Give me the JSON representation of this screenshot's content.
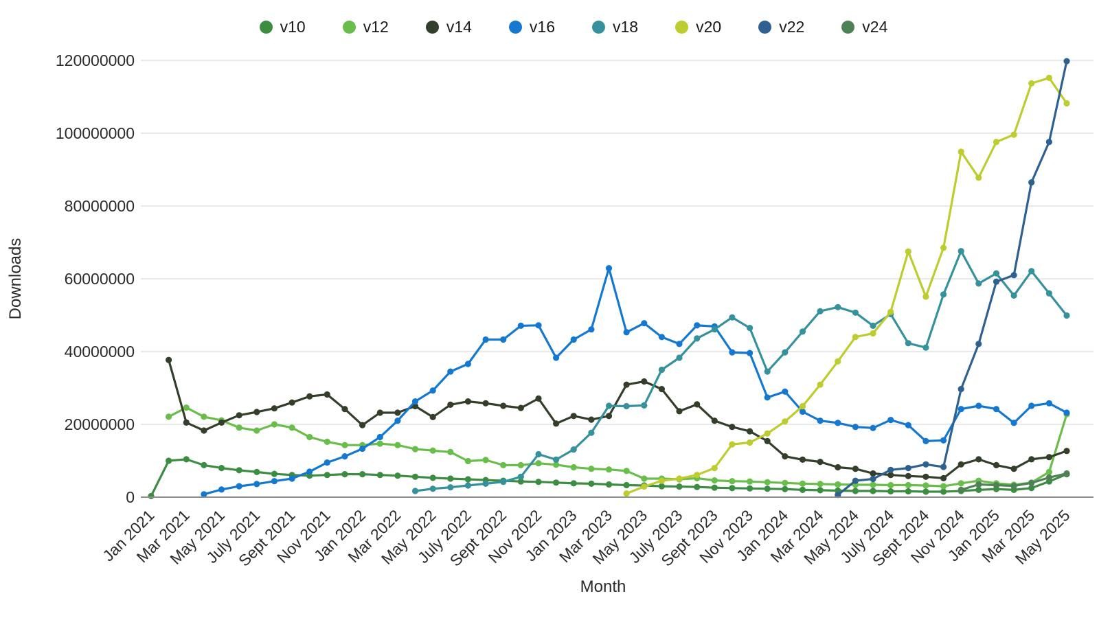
{
  "chart_data": {
    "type": "line",
    "title": "",
    "xlabel": "Month",
    "ylabel": "Downloads",
    "grid": true,
    "legend_position": "top",
    "x_tick_step": 2,
    "x_tick_rotation": -45,
    "ylim": [
      0,
      120000000
    ],
    "y_ticks": [
      0,
      20000000,
      40000000,
      60000000,
      80000000,
      100000000,
      120000000
    ],
    "axis_color": "#8d8d8d",
    "gridline_color": "#e2e2e2",
    "x": [
      "Jan 2021",
      "Feb 2021",
      "Mar 2021",
      "Apr 2021",
      "May 2021",
      "June 2021",
      "July 2021",
      "Aug 2021",
      "Sept 2021",
      "Oct 2021",
      "Nov 2021",
      "Dec 2021",
      "Jan 2022",
      "Feb 2022",
      "Mar 2022",
      "Apr 2022",
      "May 2022",
      "June 2022",
      "July 2022",
      "Aug 2022",
      "Sept 2022",
      "Oct 2022",
      "Nov 2022",
      "Dec 2022",
      "Jan 2023",
      "Feb 2023",
      "Mar 2023",
      "Apr 2023",
      "May 2023",
      "June 2023",
      "July 2023",
      "Aug 2023",
      "Sept 2023",
      "Oct 2023",
      "Nov 2023",
      "Dec 2023",
      "Jan 2024",
      "Feb 2024",
      "Mar 2024",
      "Apr 2024",
      "May 2024",
      "June 2024",
      "July 2024",
      "Aug 2024",
      "Sept 2024",
      "Oct 2024",
      "Nov 2024",
      "Dec 2024",
      "Jan 2025",
      "Feb 2025",
      "Mar 2025",
      "Apr 2025",
      "May 2025"
    ],
    "series": [
      {
        "name": "v10",
        "color": "#3c8c42",
        "values": [
          300000,
          10000000,
          10400000,
          8800000,
          8000000,
          7400000,
          6900000,
          6400000,
          6100000,
          5900000,
          6100000,
          6300000,
          6300000,
          6100000,
          5900000,
          5600000,
          5300000,
          5100000,
          4900000,
          4700000,
          4500000,
          4300000,
          4200000,
          4000000,
          3800000,
          3700000,
          3500000,
          3300000,
          3200000,
          3000000,
          2900000,
          2800000,
          2600000,
          2500000,
          2400000,
          2300000,
          2200000,
          2000000,
          1900000,
          1800000,
          1700000,
          1700000,
          1600000,
          1600000,
          1500000,
          1500000,
          1700000,
          2000000,
          2200000,
          2000000,
          2500000,
          4300000,
          6300000
        ]
      },
      {
        "name": "v12",
        "color": "#69bd4a",
        "values": [
          null,
          22100000,
          24600000,
          22100000,
          21100000,
          19100000,
          18300000,
          20000000,
          19100000,
          16500000,
          15200000,
          14300000,
          14300000,
          14700000,
          14300000,
          13200000,
          12800000,
          12400000,
          9900000,
          10200000,
          8800000,
          8800000,
          9300000,
          8900000,
          8200000,
          7800000,
          7600000,
          7200000,
          5100000,
          5100000,
          4900000,
          5200000,
          4600000,
          4400000,
          4300000,
          4100000,
          3900000,
          3700000,
          3600000,
          3500000,
          3400000,
          3400000,
          3300000,
          3300000,
          3200000,
          3000000,
          3800000,
          4500000,
          3800000,
          3400000,
          4000000,
          6900000,
          22800000
        ]
      },
      {
        "name": "v14",
        "color": "#333f2b",
        "values": [
          null,
          37700000,
          20500000,
          18300000,
          20500000,
          22500000,
          23400000,
          24400000,
          26000000,
          27700000,
          28200000,
          24200000,
          19800000,
          23200000,
          23200000,
          25000000,
          22000000,
          25400000,
          26300000,
          25800000,
          25100000,
          24500000,
          27100000,
          20200000,
          22300000,
          21300000,
          22300000,
          30900000,
          31800000,
          29700000,
          23600000,
          25500000,
          21000000,
          19300000,
          18100000,
          15400000,
          11200000,
          10300000,
          9700000,
          8200000,
          7800000,
          6500000,
          6100000,
          5800000,
          5600000,
          5200000,
          9000000,
          10400000,
          8800000,
          7800000,
          10400000,
          11000000,
          12700000
        ]
      },
      {
        "name": "v16",
        "color": "#1478d0",
        "values": [
          null,
          null,
          null,
          800000,
          2100000,
          3000000,
          3600000,
          4400000,
          5100000,
          7000000,
          9500000,
          11200000,
          13300000,
          16500000,
          21000000,
          26300000,
          29300000,
          34500000,
          36600000,
          43300000,
          43300000,
          47100000,
          47200000,
          38300000,
          43300000,
          46100000,
          62900000,
          45300000,
          47800000,
          44000000,
          42100000,
          47200000,
          46900000,
          39800000,
          39600000,
          27400000,
          29000000,
          23500000,
          21000000,
          20400000,
          19300000,
          19000000,
          21200000,
          19800000,
          15400000,
          15600000,
          24200000,
          25100000,
          24200000,
          20400000,
          25100000,
          25800000,
          23200000
        ]
      },
      {
        "name": "v18",
        "color": "#35919c",
        "values": [
          null,
          null,
          null,
          null,
          null,
          null,
          null,
          null,
          null,
          null,
          null,
          null,
          null,
          null,
          null,
          1700000,
          2300000,
          2700000,
          3200000,
          3700000,
          4200000,
          5600000,
          11800000,
          10300000,
          13100000,
          17700000,
          25100000,
          25000000,
          25200000,
          35000000,
          38300000,
          43600000,
          46100000,
          49400000,
          46500000,
          34500000,
          39800000,
          45500000,
          51100000,
          52200000,
          50700000,
          47100000,
          50300000,
          42300000,
          41100000,
          55700000,
          67600000,
          58700000,
          61500000,
          55400000,
          62100000,
          56000000,
          49900000
        ]
      },
      {
        "name": "v20",
        "color": "#bdcc2e",
        "values": [
          null,
          null,
          null,
          null,
          null,
          null,
          null,
          null,
          null,
          null,
          null,
          null,
          null,
          null,
          null,
          null,
          null,
          null,
          null,
          null,
          null,
          null,
          null,
          null,
          null,
          null,
          null,
          1000000,
          2900000,
          4500000,
          5100000,
          6100000,
          8000000,
          14500000,
          15000000,
          17500000,
          20800000,
          25000000,
          30900000,
          37300000,
          44000000,
          45000000,
          50900000,
          67500000,
          55100000,
          68500000,
          94900000,
          87800000,
          97600000,
          99600000,
          113700000,
          115200000,
          108200000
        ]
      },
      {
        "name": "v22",
        "color": "#2e6190",
        "values": [
          null,
          null,
          null,
          null,
          null,
          null,
          null,
          null,
          null,
          null,
          null,
          null,
          null,
          null,
          null,
          null,
          null,
          null,
          null,
          null,
          null,
          null,
          null,
          null,
          null,
          null,
          null,
          null,
          null,
          null,
          null,
          null,
          null,
          null,
          null,
          null,
          null,
          null,
          null,
          600000,
          4500000,
          5000000,
          7500000,
          8000000,
          9000000,
          8300000,
          29700000,
          42100000,
          59200000,
          61000000,
          86500000,
          97600000,
          119800000
        ]
      },
      {
        "name": "v24",
        "color": "#4f8157",
        "values": [
          null,
          null,
          null,
          null,
          null,
          null,
          null,
          null,
          null,
          null,
          null,
          null,
          null,
          null,
          null,
          null,
          null,
          null,
          null,
          null,
          null,
          null,
          null,
          null,
          null,
          null,
          null,
          null,
          null,
          null,
          null,
          null,
          null,
          null,
          null,
          null,
          null,
          null,
          null,
          null,
          null,
          null,
          null,
          null,
          null,
          null,
          2000000,
          3500000,
          3300000,
          3100000,
          3900000,
          5400000,
          6500000
        ]
      }
    ]
  }
}
